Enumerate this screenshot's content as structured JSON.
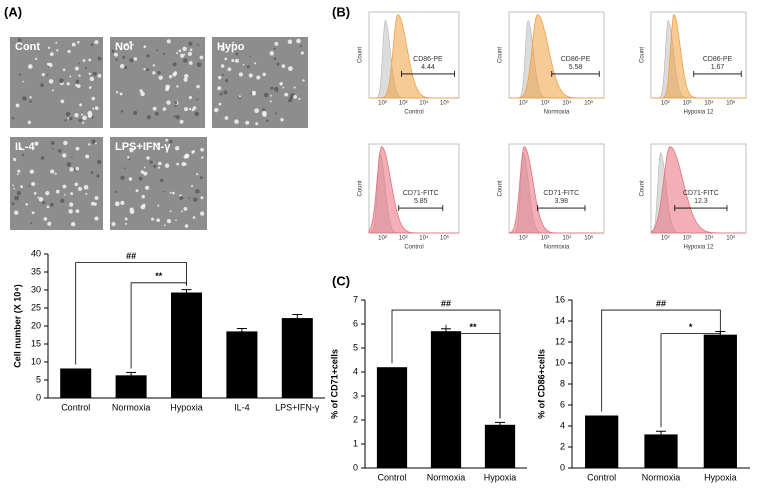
{
  "panel_labels": [
    "(A)",
    "(B)",
    "(C)"
  ],
  "micrographs": [
    "Cont",
    "Nor",
    "Hypo",
    "IL-4",
    "LPS+IFN-γ"
  ],
  "flow_y_label": "Count",
  "flow_x_ticks": [
    "10²",
    "10³",
    "10⁴",
    "10⁵"
  ],
  "flow_panels": [
    {
      "marker": "CD86-PE",
      "value": "4.44",
      "sample": "Control"
    },
    {
      "marker": "CD86-PE",
      "value": "5.58",
      "sample": "Normoxia"
    },
    {
      "marker": "CD86-PE",
      "value": "1.67",
      "sample": "Hypoxia 12"
    },
    {
      "marker": "CD71-FITC",
      "value": "5.85",
      "sample": "Control"
    },
    {
      "marker": "CD71-FITC",
      "value": "3.98",
      "sample": "Normoxia"
    },
    {
      "marker": "CD71-FITC",
      "value": "12.3",
      "sample": "Hypoxia 12"
    }
  ],
  "chart_data": [
    {
      "type": "bar",
      "y_label": "Cell number (X 10⁴)",
      "color": "#000000",
      "categories": [
        "Control",
        "Normoxia",
        "Hypoxia",
        "IL-4",
        "LPS+IFN-γ"
      ],
      "values": [
        8.2,
        6.3,
        29.3,
        18.5,
        22.2
      ],
      "errors": [
        null,
        0.8,
        0.8,
        0.8,
        1.0
      ],
      "ylim": [
        0,
        40
      ],
      "yticks": [
        0,
        5,
        10,
        15,
        20,
        25,
        30,
        35,
        40
      ],
      "annotations": [
        {
          "text": "##",
          "between": [
            "Control",
            "Hypoxia"
          ]
        },
        {
          "text": "**",
          "between": [
            "Normoxia",
            "Hypoxia"
          ]
        }
      ]
    },
    {
      "type": "bar",
      "y_label": "% of CD71+cells",
      "color": "#000000",
      "categories": [
        "Control",
        "Normoxia",
        "Hypoxia"
      ],
      "values": [
        4.2,
        5.7,
        1.8
      ],
      "errors": [
        null,
        0.1,
        0.1
      ],
      "ylim": [
        0,
        7
      ],
      "yticks": [
        0,
        1,
        2,
        3,
        4,
        5,
        6,
        7
      ],
      "annotations": [
        {
          "text": "##",
          "between": [
            "Control",
            "Hypoxia"
          ]
        },
        {
          "text": "**",
          "between": [
            "Normoxia",
            "Hypoxia"
          ]
        }
      ]
    },
    {
      "type": "bar",
      "y_label": "% of CD86+cells",
      "color": "#000000",
      "categories": [
        "Control",
        "Normoxia",
        "Hypoxia"
      ],
      "values": [
        5.0,
        3.2,
        12.7
      ],
      "errors": [
        null,
        0.3,
        0.3
      ],
      "ylim": [
        0,
        16
      ],
      "yticks": [
        0,
        2,
        4,
        6,
        8,
        10,
        12,
        14,
        16
      ],
      "annotations": [
        {
          "text": "##",
          "between": [
            "Control",
            "Hypoxia"
          ]
        },
        {
          "text": "*",
          "between": [
            "Normoxia",
            "Hypoxia"
          ]
        }
      ]
    }
  ]
}
